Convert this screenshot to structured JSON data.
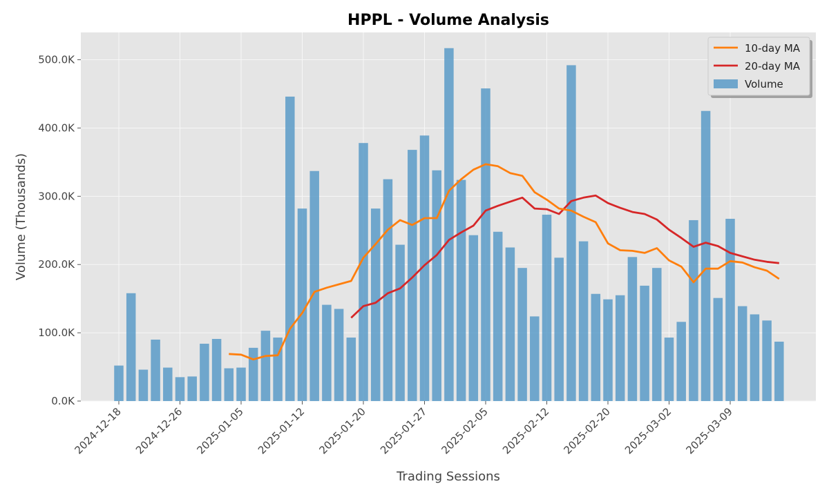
{
  "chart_data": {
    "type": "bar",
    "title": "HPPL - Volume Analysis",
    "xlabel": "Trading Sessions",
    "ylabel": "Volume (Thousands)",
    "ylim": [
      0,
      540
    ],
    "y_unit": "thousands",
    "y_ticks": [
      0,
      100,
      200,
      300,
      400,
      500
    ],
    "y_tick_labels": [
      "0.0K",
      "100.0K",
      "200.0K",
      "300.0K",
      "400.0K",
      "500.0K"
    ],
    "x_tick_labels": [
      "2024-12-18",
      "2024-12-26",
      "2025-01-05",
      "2025-01-12",
      "2025-01-20",
      "2025-01-27",
      "2025-02-05",
      "2025-02-12",
      "2025-02-20",
      "2025-03-02",
      "2025-03-09"
    ],
    "x_tick_sessions": [
      0,
      5,
      10,
      15,
      20,
      25,
      30,
      35,
      40,
      45,
      50
    ],
    "grid": true,
    "legend_position": "top-right",
    "legend": [
      "10-day MA",
      "20-day MA",
      "Volume"
    ],
    "colors": {
      "volume": "#5b9bc8",
      "ma10": "#ff7f0e",
      "ma20": "#d62728",
      "plot_bg": "#e5e5e5",
      "grid": "#f7f7f7"
    },
    "series": [
      {
        "name": "Volume",
        "values": [
          52,
          158,
          46,
          90,
          49,
          35,
          36,
          84,
          91,
          48,
          49,
          78,
          103,
          93,
          446,
          282,
          337,
          141,
          135,
          93,
          378,
          282,
          325,
          229,
          368,
          389,
          338,
          517,
          324,
          243,
          458,
          248,
          225,
          195,
          124,
          273,
          210,
          492,
          234,
          157,
          149,
          155,
          211,
          169,
          195,
          93,
          116,
          265,
          425,
          151,
          267,
          139,
          127,
          118,
          87
        ]
      },
      {
        "name": "10-day MA",
        "values": [
          null,
          null,
          null,
          null,
          null,
          null,
          null,
          null,
          null,
          69,
          68,
          61,
          66,
          67,
          106,
          129,
          160,
          166,
          171,
          176,
          210,
          230,
          251,
          265,
          258,
          268,
          268,
          308,
          325,
          339,
          347,
          344,
          334,
          330,
          306,
          295,
          282,
          279,
          270,
          262,
          231,
          221,
          220,
          217,
          224,
          206,
          197,
          174,
          194,
          194,
          205,
          203,
          196,
          191,
          179
        ]
      },
      {
        "name": "20-day MA",
        "values": [
          null,
          null,
          null,
          null,
          null,
          null,
          null,
          null,
          null,
          null,
          null,
          null,
          null,
          null,
          null,
          null,
          null,
          null,
          null,
          122,
          139,
          144,
          158,
          165,
          181,
          199,
          214,
          236,
          247,
          257,
          279,
          286,
          292,
          298,
          282,
          281,
          274,
          293,
          298,
          301,
          290,
          283,
          277,
          274,
          266,
          251,
          239,
          226,
          232,
          227,
          217,
          212,
          207,
          204,
          202
        ]
      }
    ]
  }
}
